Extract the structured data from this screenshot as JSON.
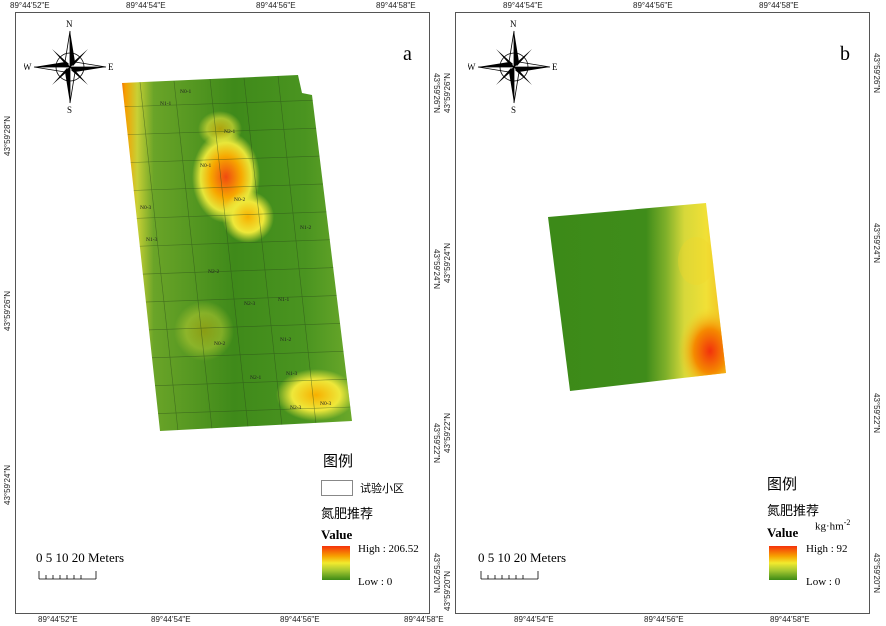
{
  "panel_a": {
    "letter": "a",
    "top_lon_labels": [
      "89°44'52\"E",
      "89°44'54\"E",
      "89°44'56\"E",
      "89°44'58\"E"
    ],
    "bottom_lon_labels": [
      "89°44'52\"E",
      "89°44'54\"E",
      "89°44'56\"E",
      "89°44'58\"E"
    ],
    "left_lat_labels": [
      "43°59'28\"N",
      "43°59'26\"N",
      "43°59'24\"N"
    ],
    "right_lat_labels": [
      "43°59'26\"N",
      "43°59'24\"N",
      "43°59'22\"N",
      "43°59'20\"N"
    ],
    "plot_labels": [
      "N1-1",
      "N2-1",
      "N0-1",
      "N0-2",
      "N0-3",
      "N1-2",
      "N1-3",
      "N2-2",
      "N2-3",
      "N1-1",
      "N0-2",
      "N1-2",
      "N2-1",
      "N1-3",
      "N0-1",
      "N2-3",
      "N0-3"
    ],
    "legend": {
      "title": "图例",
      "plot_label": "试验小区",
      "layer": "氮肥推荐",
      "value": "Value",
      "high": "High : 206.52",
      "low": "Low : 0"
    },
    "scale": "0  5 10    20 Meters"
  },
  "panel_b": {
    "letter": "b",
    "top_lon_labels": [
      "89°44'54\"E",
      "89°44'56\"E",
      "89°44'58\"E"
    ],
    "bottom_lon_labels": [
      "89°44'54\"E",
      "89°44'56\"E",
      "89°44'58\"E"
    ],
    "left_lat_labels": [
      "43°59'26\"N",
      "43°59'24\"N",
      "43°59'22\"N",
      "43°59'20\"N"
    ],
    "right_lat_labels": [
      "43°59'26\"N",
      "43°59'24\"N",
      "43°59'22\"N",
      "43°59'20\"N"
    ],
    "legend": {
      "title": "图例",
      "layer": "氮肥推荐",
      "value": "Value",
      "unit": "kg·hm",
      "unit_exp": "-2",
      "high": "High : 92",
      "low": "Low : 0"
    },
    "scale": "0  5 10    20 Meters"
  },
  "compass": {
    "n": "N",
    "s": "S",
    "e": "E",
    "w": "W"
  },
  "colors": {
    "high": "#f5320c",
    "mid": "#f2ea2e",
    "low": "#3c8a16"
  }
}
